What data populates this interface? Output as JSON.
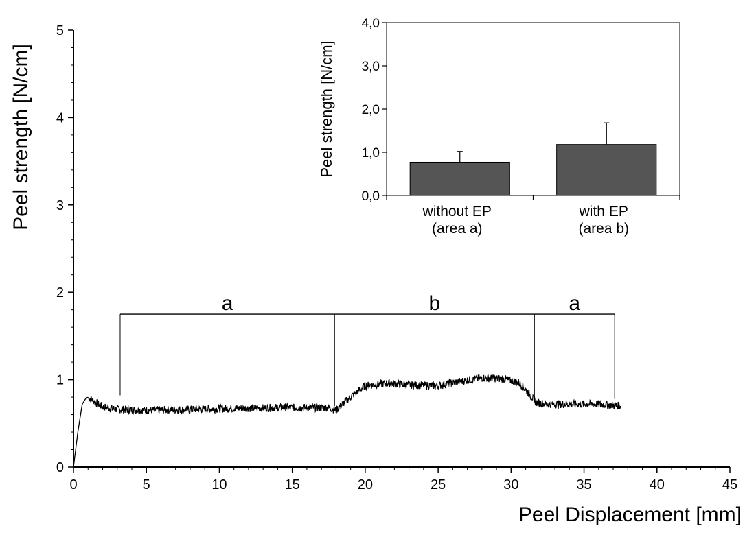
{
  "chart_data": [
    {
      "type": "line",
      "xlabel": "Peel Displacement [mm]",
      "ylabel": "Peel strength [N/cm]",
      "xlim": [
        0,
        45
      ],
      "ylim": [
        0,
        5
      ],
      "x_ticks": [
        "0",
        "5",
        "10",
        "15",
        "20",
        "25",
        "30",
        "35",
        "40",
        "45"
      ],
      "y_ticks": [
        "0",
        "1",
        "2",
        "3",
        "4",
        "5"
      ],
      "grid": false,
      "series": [
        {
          "x": [
            0,
            0.3,
            0.6,
            0.9,
            1.2,
            1.6,
            2.0,
            3.0,
            5,
            8,
            11,
            14,
            16,
            17.5,
            18.0,
            18.5,
            19.2,
            20.0,
            21.5,
            23,
            25,
            26.5,
            28,
            29.5,
            30.5,
            31.2,
            31.7,
            32.5,
            34,
            36,
            37.5
          ],
          "y": [
            0,
            0.4,
            0.72,
            0.8,
            0.78,
            0.73,
            0.69,
            0.66,
            0.65,
            0.66,
            0.67,
            0.68,
            0.68,
            0.68,
            0.65,
            0.73,
            0.83,
            0.93,
            0.96,
            0.94,
            0.93,
            0.98,
            1.02,
            1.01,
            0.97,
            0.85,
            0.74,
            0.72,
            0.72,
            0.72,
            0.7
          ]
        }
      ],
      "annotations": {
        "bracket_boundaries_x": [
          3.2,
          17.9,
          31.6,
          37.1
        ],
        "bracket_y": 1.75,
        "labels": [
          "a",
          "b",
          "a"
        ]
      }
    },
    {
      "type": "bar",
      "categories": [
        [
          "without EP",
          "(area a)"
        ],
        [
          "with EP",
          "(area b)"
        ]
      ],
      "values": [
        0.77,
        1.18
      ],
      "errors": [
        0.25,
        0.5
      ],
      "ylabel": "Peel strength [N/cm]",
      "ylim": [
        0,
        4
      ],
      "y_ticks": [
        "0,0",
        "1,0",
        "2,0",
        "3,0",
        "4,0"
      ],
      "bar_color": "#555555"
    }
  ]
}
